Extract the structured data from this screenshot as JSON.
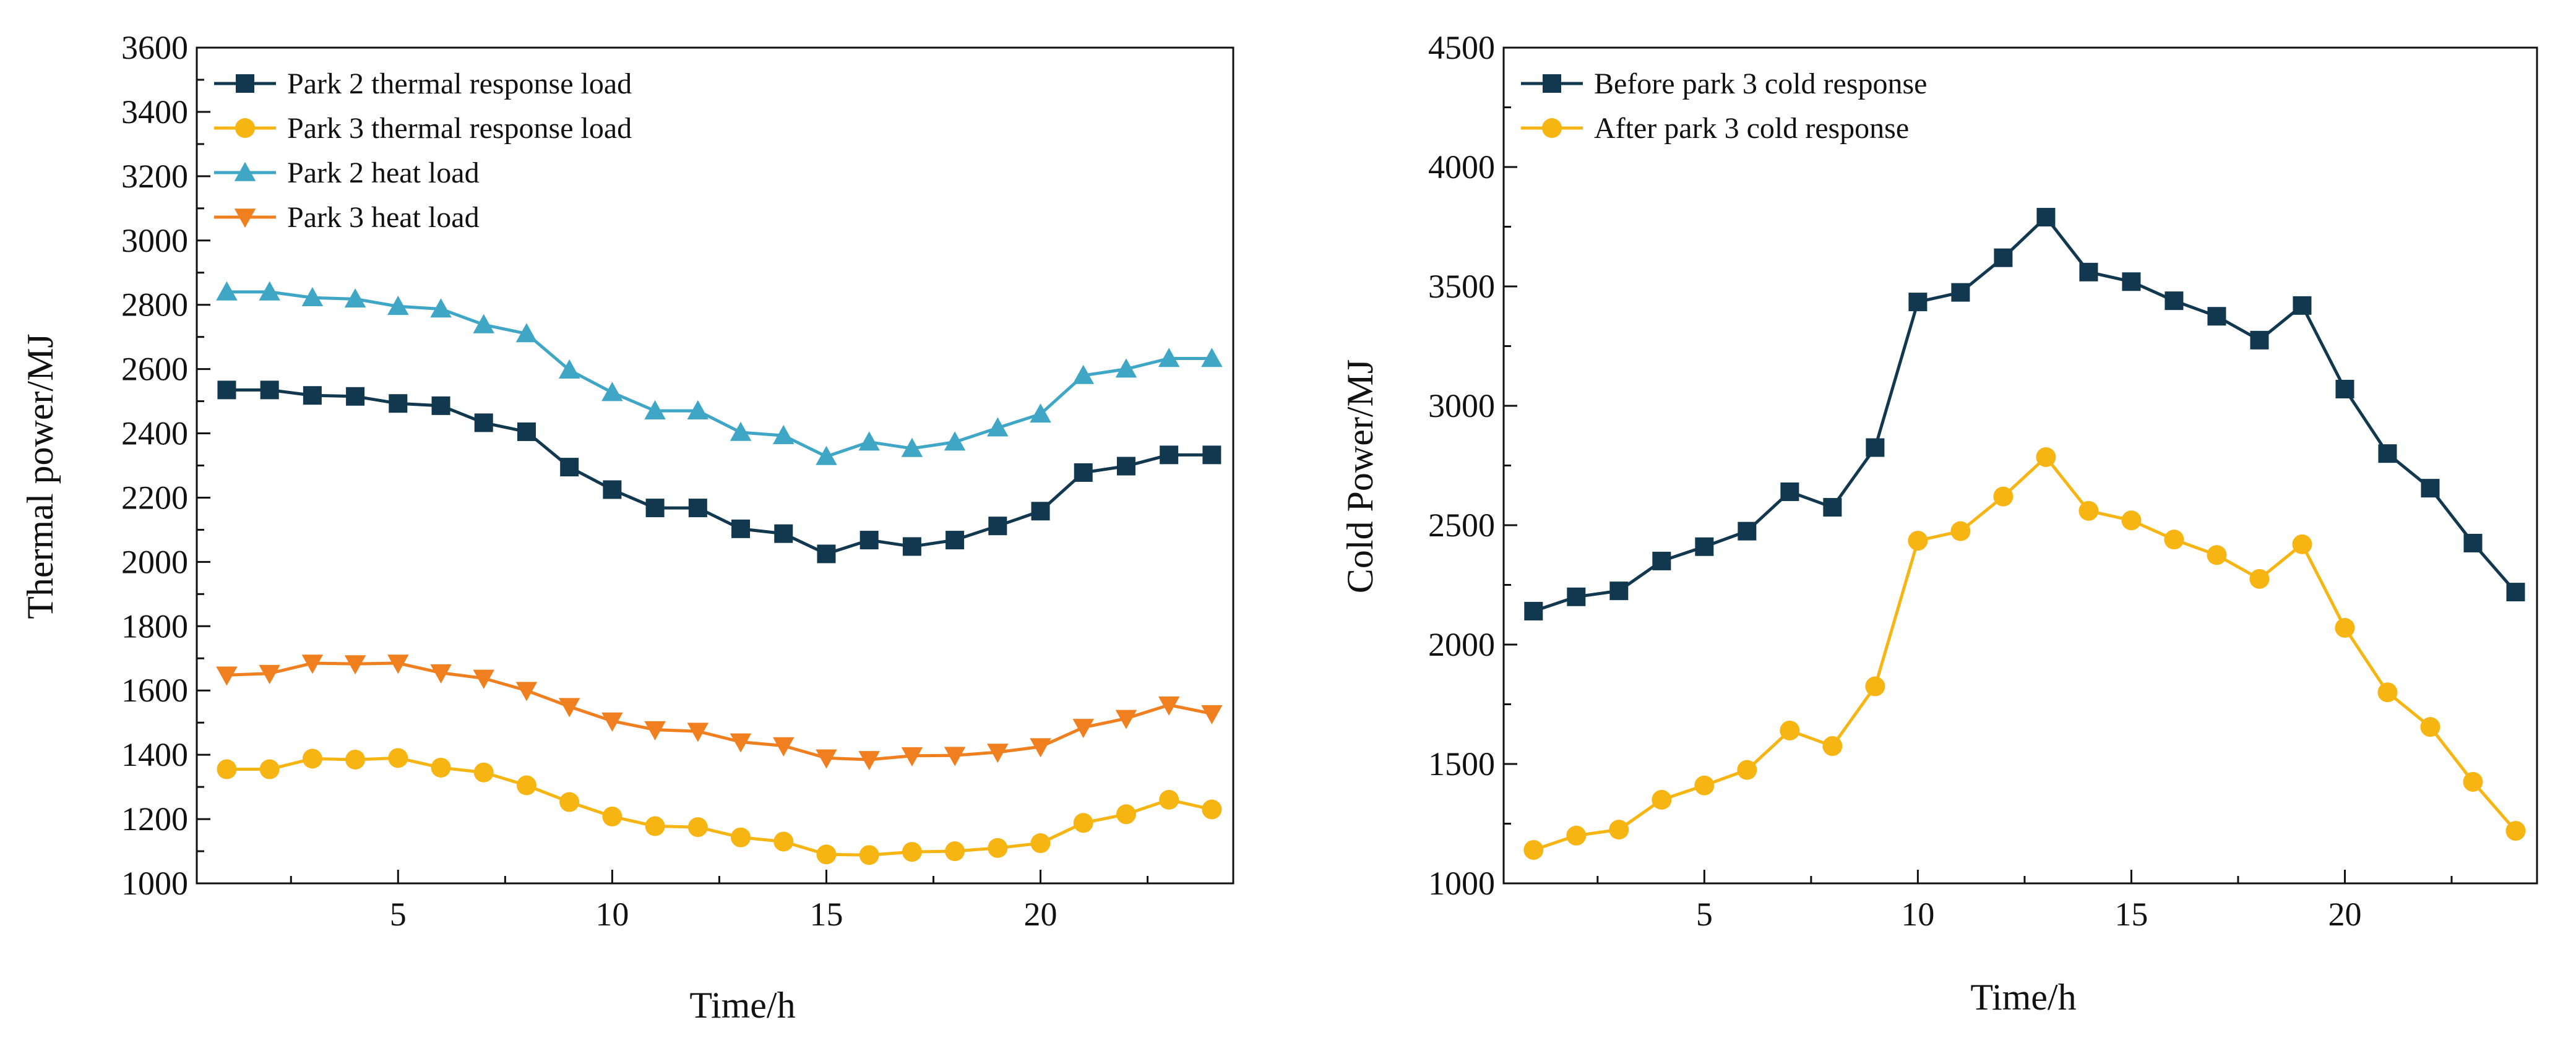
{
  "chart_data": [
    {
      "type": "line",
      "title": "",
      "xlabel": "Time/h",
      "ylabel": "Thermal power/MJ",
      "xlim": [
        0.3,
        24.5
      ],
      "ylim": [
        1000,
        3600
      ],
      "xticks": [
        5,
        10,
        15,
        20
      ],
      "yticks": [
        1000,
        1200,
        1400,
        1600,
        1800,
        2000,
        2200,
        2400,
        2600,
        2800,
        3000,
        3200,
        3400,
        3600
      ],
      "grid": false,
      "legend_position": "top-left",
      "x": [
        1,
        2,
        3,
        4,
        5,
        6,
        7,
        8,
        9,
        10,
        11,
        12,
        13,
        14,
        15,
        16,
        17,
        18,
        19,
        20,
        21,
        22,
        23,
        24
      ],
      "series": [
        {
          "name": "Park 2 thermal response load",
          "color": "#12384f",
          "marker": "square",
          "values": [
            2535,
            2535,
            2518,
            2515,
            2493,
            2486,
            2433,
            2405,
            2295,
            2225,
            2168,
            2168,
            2103,
            2088,
            2025,
            2068,
            2048,
            2068,
            2112,
            2158,
            2278,
            2298,
            2333,
            2333
          ]
        },
        {
          "name": "Park 3 thermal response load",
          "color": "#f6b513",
          "marker": "circle",
          "values": [
            1355,
            1355,
            1388,
            1385,
            1390,
            1360,
            1345,
            1305,
            1253,
            1208,
            1178,
            1175,
            1143,
            1130,
            1090,
            1088,
            1098,
            1100,
            1110,
            1125,
            1188,
            1215,
            1260,
            1230
          ]
        },
        {
          "name": "Park 2 heat load",
          "color": "#3fa7c5",
          "marker": "triangle-up",
          "values": [
            2840,
            2840,
            2822,
            2818,
            2795,
            2787,
            2738,
            2710,
            2597,
            2527,
            2470,
            2470,
            2403,
            2393,
            2328,
            2373,
            2353,
            2373,
            2417,
            2460,
            2580,
            2600,
            2633,
            2633
          ]
        },
        {
          "name": "Park 3 heat load",
          "color": "#f07f1f",
          "marker": "triangle-down",
          "values": [
            1648,
            1653,
            1685,
            1683,
            1685,
            1655,
            1638,
            1600,
            1550,
            1505,
            1478,
            1473,
            1440,
            1428,
            1390,
            1385,
            1397,
            1398,
            1408,
            1425,
            1485,
            1513,
            1555,
            1528
          ]
        }
      ]
    },
    {
      "type": "line",
      "title": "",
      "xlabel": "Time/h",
      "ylabel": "Cold Power/MJ",
      "xlim": [
        0.3,
        24.5
      ],
      "ylim": [
        1000,
        4500
      ],
      "xticks": [
        5,
        10,
        15,
        20
      ],
      "yticks": [
        1000,
        1500,
        2000,
        2500,
        3000,
        3500,
        4000,
        4500
      ],
      "grid": false,
      "legend_position": "top-left",
      "x": [
        1,
        2,
        3,
        4,
        5,
        6,
        7,
        8,
        9,
        10,
        11,
        12,
        13,
        14,
        15,
        16,
        17,
        18,
        19,
        20,
        21,
        22,
        23,
        24
      ],
      "series": [
        {
          "name": "Before park 3 cold response",
          "color": "#12384f",
          "marker": "square",
          "values": [
            2140,
            2200,
            2225,
            2350,
            2410,
            2475,
            2640,
            2575,
            2825,
            3435,
            3475,
            3620,
            3790,
            3560,
            3520,
            3440,
            3375,
            3275,
            3420,
            3070,
            2800,
            2655,
            2425,
            2220
          ]
        },
        {
          "name": "After park 3 cold response",
          "color": "#f6b513",
          "marker": "circle",
          "values": [
            1140,
            1200,
            1225,
            1350,
            1410,
            1475,
            1640,
            1575,
            1825,
            2435,
            2475,
            2620,
            2785,
            2560,
            2520,
            2440,
            2375,
            2275,
            2420,
            2070,
            1800,
            1655,
            1425,
            1220
          ]
        }
      ]
    }
  ]
}
